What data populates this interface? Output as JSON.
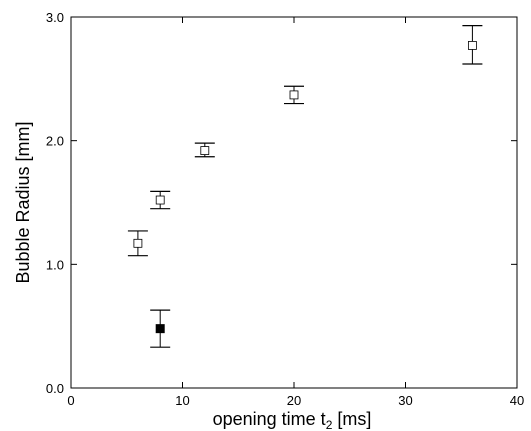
{
  "chart_data": {
    "type": "scatter",
    "title": "",
    "xlabel_main": "opening time t",
    "xlabel_sub": "2",
    "xlabel_unit": " [ms]",
    "ylabel": "Bubble Radius [mm]",
    "xlim": [
      0,
      40
    ],
    "ylim": [
      0.0,
      3.0
    ],
    "x_ticks": [
      0,
      10,
      20,
      30,
      40
    ],
    "x_tick_labels": [
      "0",
      "10",
      "20",
      "30",
      "40"
    ],
    "y_ticks": [
      0.0,
      1.0,
      2.0,
      3.0
    ],
    "y_tick_labels": [
      "0.0",
      "1.0",
      "2.0",
      "3.0"
    ],
    "grid": false,
    "legend": "none",
    "series": [
      {
        "marker": "open-square",
        "color": "#000000",
        "points": [
          {
            "x": 6,
            "y": 1.17,
            "err_low": 1.07,
            "err_high": 1.27
          },
          {
            "x": 8,
            "y": 1.52,
            "err_low": 1.45,
            "err_high": 1.59
          },
          {
            "x": 12,
            "y": 1.92,
            "err_low": 1.87,
            "err_high": 1.98
          },
          {
            "x": 20,
            "y": 2.37,
            "err_low": 2.3,
            "err_high": 2.44
          },
          {
            "x": 36,
            "y": 2.77,
            "err_low": 2.62,
            "err_high": 2.93
          }
        ]
      },
      {
        "marker": "filled-square",
        "color": "#000000",
        "points": [
          {
            "x": 8,
            "y": 0.48,
            "err_low": 0.33,
            "err_high": 0.63
          }
        ]
      }
    ]
  }
}
